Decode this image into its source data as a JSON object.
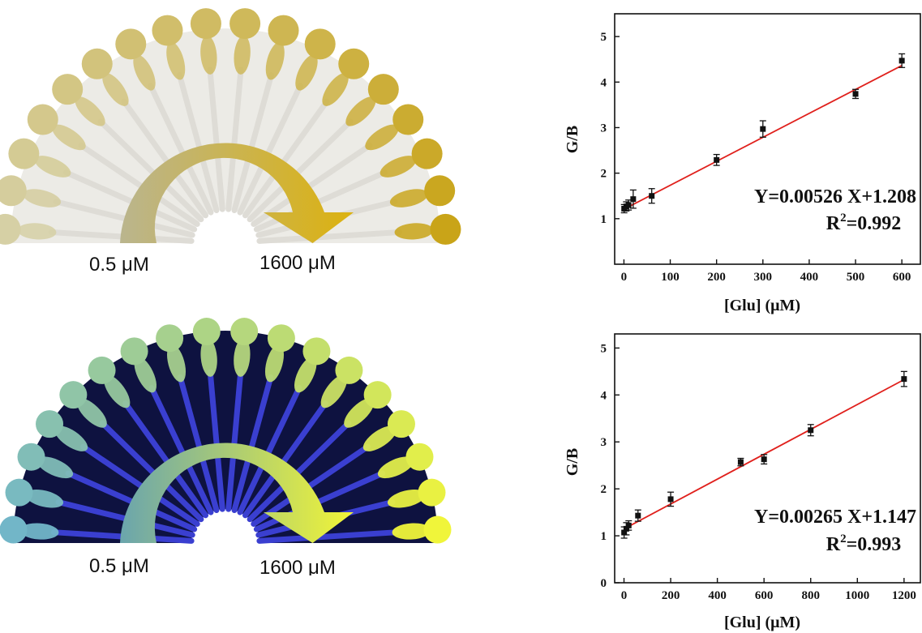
{
  "fans": [
    {
      "label_low": "0.5 μM",
      "label_high": "1600 μM",
      "theme": "daylight",
      "colors": {
        "background": "#ecebe6",
        "low": "#d6d0a5",
        "high": "#c9a418",
        "arrow_start": "#bab58e",
        "arrow_end": "#dcb20f"
      }
    },
    {
      "label_low": "0.5 μM",
      "label_high": "1600 μM",
      "theme": "uv",
      "colors": {
        "background": "#0e1240",
        "low": "#72b6c8",
        "high": "#f0f53a",
        "arrow_start": "#6aa5ad",
        "arrow_end": "#f2f536"
      }
    }
  ],
  "chart_data": [
    {
      "type": "scatter",
      "title": "",
      "xlabel": "[Glu] (μM)",
      "ylabel": "G/B",
      "xlim": [
        -20,
        640
      ],
      "ylim": [
        0,
        5.5
      ],
      "xticks": [
        0,
        100,
        200,
        300,
        400,
        500,
        600
      ],
      "yticks": [
        1,
        2,
        3,
        4,
        5
      ],
      "x": [
        0.5,
        5,
        10,
        20,
        60,
        200,
        300,
        500,
        600
      ],
      "y": [
        1.22,
        1.27,
        1.3,
        1.43,
        1.5,
        2.29,
        2.97,
        3.74,
        4.47
      ],
      "err": [
        0.09,
        0.1,
        0.11,
        0.2,
        0.16,
        0.12,
        0.18,
        0.1,
        0.15
      ],
      "fit": {
        "slope": 0.00526,
        "intercept": 1.208
      },
      "equation": "Y=0.00526 X+1.208",
      "r2_prefix": "R",
      "r2_sup": "2",
      "r2_value": "=0.992",
      "colors": {
        "points": "#111111",
        "fit": "#e0201c"
      }
    },
    {
      "type": "scatter",
      "title": "",
      "xlabel": "[Glu] (μM)",
      "ylabel": "G/B",
      "xlim": [
        -40,
        1270
      ],
      "ylim": [
        0,
        5.3
      ],
      "xticks": [
        0,
        200,
        400,
        600,
        800,
        1000,
        1200
      ],
      "yticks": [
        0,
        1,
        2,
        3,
        4,
        5
      ],
      "x": [
        0.5,
        10,
        20,
        60,
        200,
        500,
        600,
        800,
        1200
      ],
      "y": [
        1.07,
        1.15,
        1.22,
        1.43,
        1.78,
        2.57,
        2.63,
        3.25,
        4.34
      ],
      "err": [
        0.12,
        0.13,
        0.1,
        0.12,
        0.15,
        0.08,
        0.1,
        0.12,
        0.16
      ],
      "fit": {
        "slope": 0.00265,
        "intercept": 1.147
      },
      "equation": "Y=0.00265 X+1.147",
      "r2_prefix": "R",
      "r2_sup": "2",
      "r2_value": "=0.993",
      "colors": {
        "points": "#111111",
        "fit": "#e0201c"
      }
    }
  ]
}
